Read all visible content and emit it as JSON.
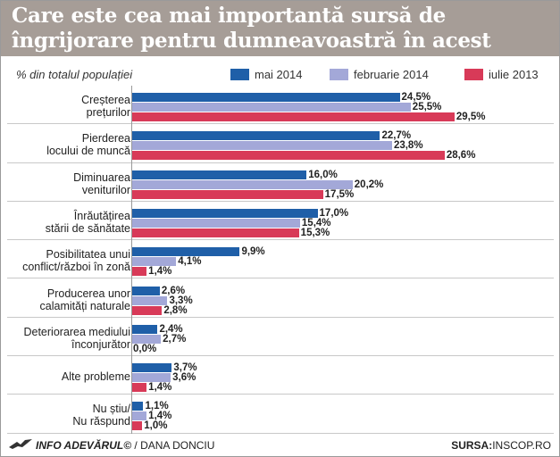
{
  "header": {
    "title": "Care este cea mai importantă sursă de îngrijorare pentru dumneavoastră în acest moment?",
    "subtitle": "% din totalul populației"
  },
  "legend": [
    {
      "label": "mai 2014",
      "color": "#1f5fa8"
    },
    {
      "label": "februarie 2014",
      "color": "#a3a8d8"
    },
    {
      "label": "iulie 2013",
      "color": "#d83a58"
    }
  ],
  "chart_data": {
    "type": "bar",
    "orientation": "horizontal",
    "categories": [
      [
        "Creșterea",
        "prețurilor"
      ],
      [
        "Pierderea",
        "locului de muncă"
      ],
      [
        "Diminuarea",
        "veniturilor"
      ],
      [
        "Înrăutățirea",
        "stării de sănătate"
      ],
      [
        "Posibilitatea unui",
        "conflict/război în zonă"
      ],
      [
        "Producerea unor",
        "calamități naturale"
      ],
      [
        "Deteriorarea mediului",
        "înconjurător"
      ],
      [
        "Alte probleme"
      ],
      [
        "Nu știu/",
        "Nu răspund"
      ]
    ],
    "series": [
      {
        "name": "mai 2014",
        "values": [
          24.5,
          22.7,
          16.0,
          17.0,
          9.9,
          2.6,
          2.4,
          3.7,
          1.1
        ],
        "labels": [
          "24,5%",
          "22,7%",
          "16,0%",
          "17,0%",
          "9,9%",
          "2,6%",
          "2,4%",
          "3,7%",
          "1,1%"
        ]
      },
      {
        "name": "februarie 2014",
        "values": [
          25.5,
          23.8,
          20.2,
          15.4,
          4.1,
          3.3,
          2.7,
          3.6,
          1.4
        ],
        "labels": [
          "25,5%",
          "23,8%",
          "20,2%",
          "15,4%",
          "4,1%",
          "3,3%",
          "2,7%",
          "3,6%",
          "1,4%"
        ]
      },
      {
        "name": "iulie 2013",
        "values": [
          29.5,
          28.6,
          17.5,
          15.3,
          1.4,
          2.8,
          0.0,
          1.4,
          1.0
        ],
        "labels": [
          "29,5%",
          "28,6%",
          "17,5%",
          "15,3%",
          "1,4%",
          "2,8%",
          "0,0%",
          "1,4%",
          "1,0%"
        ]
      }
    ],
    "xlim": [
      0,
      30
    ],
    "grid": true,
    "legend_position": "top"
  },
  "footer": {
    "brand": "INFO ADEVĂRUL©",
    "author": " / DANA DONCIU",
    "source_label": "SURSA:",
    "source_value": "INSCOP.RO"
  }
}
